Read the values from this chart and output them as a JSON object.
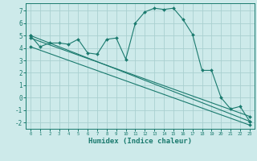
{
  "title": "",
  "xlabel": "Humidex (Indice chaleur)",
  "ylabel": "",
  "background_color": "#cdeaea",
  "grid_color": "#aad0d0",
  "line_color": "#1a7a6e",
  "xlim": [
    -0.5,
    23.5
  ],
  "ylim": [
    -2.5,
    7.6
  ],
  "xticks": [
    0,
    1,
    2,
    3,
    4,
    5,
    6,
    7,
    8,
    9,
    10,
    11,
    12,
    13,
    14,
    15,
    16,
    17,
    18,
    19,
    20,
    21,
    22,
    23
  ],
  "yticks": [
    -2,
    -1,
    0,
    1,
    2,
    3,
    4,
    5,
    6,
    7
  ],
  "series": [
    {
      "x": [
        0,
        1,
        2,
        3,
        4,
        5,
        6,
        7,
        8,
        9,
        10,
        11,
        12,
        13,
        14,
        15,
        16,
        17,
        18,
        19,
        20,
        21,
        22,
        23
      ],
      "y": [
        5.0,
        4.1,
        4.4,
        4.4,
        4.3,
        4.7,
        3.6,
        3.5,
        4.7,
        4.8,
        3.1,
        6.0,
        6.9,
        7.2,
        7.1,
        7.2,
        6.3,
        5.1,
        2.2,
        2.2,
        0.0,
        -0.9,
        -0.7,
        -1.9
      ]
    },
    {
      "x": [
        0,
        23
      ],
      "y": [
        5.0,
        -1.9
      ]
    },
    {
      "x": [
        0,
        23
      ],
      "y": [
        4.1,
        -2.2
      ]
    },
    {
      "x": [
        0,
        23
      ],
      "y": [
        4.8,
        -1.5
      ]
    }
  ]
}
